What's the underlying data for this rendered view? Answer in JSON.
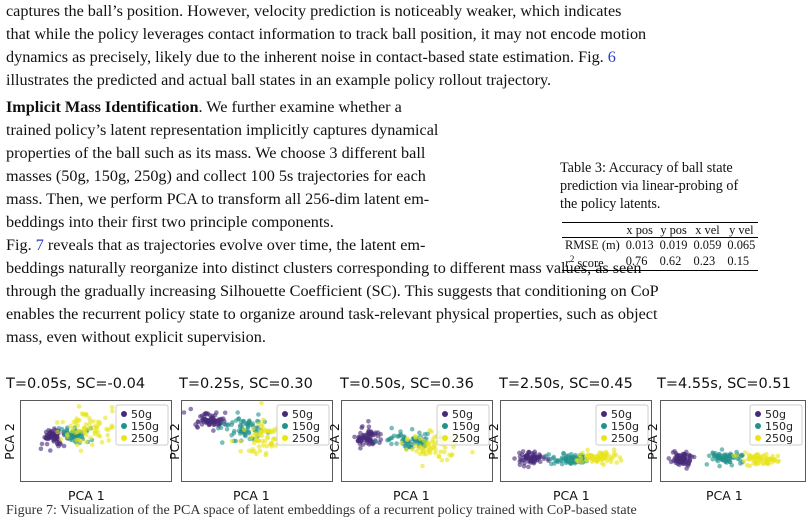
{
  "para1": {
    "line1": "captures the ball’s position. However, velocity prediction is noticeably weaker, which indicates",
    "line2": "that while the policy leverages contact information to track ball position, it may not encode motion",
    "line3_pre": "dynamics as precisely, likely due to the inherent noise in contact-based state estimation. Fig. ",
    "line3_ref": "6",
    "line4": "illustrates the predicted and actual ball states in an example policy rollout trajectory."
  },
  "para2": {
    "heading": "Implicit Mass Identification",
    "line1_rest": ". We further examine whether a",
    "line2": "trained policy’s latent representation implicitly captures dynamical",
    "line3": "properties of the ball such as its mass. We choose 3 different ball",
    "line4": "masses (50g, 150g, 250g) and collect 100 5s trajectories for each",
    "line5": "mass. Then, we perform PCA to transform all 256-dim latent em-",
    "line6": "beddings into their first two principle components.",
    "line7_pre": "Fig. ",
    "line7_ref": "7",
    "line7_post": " reveals that as trajectories evolve over time, the latent em-",
    "line8": "beddings naturally reorganize into distinct clusters corresponding to different mass values, as seen",
    "line9": "through the gradually increasing Silhouette Coefficient (SC). This suggests that conditioning on CoP",
    "line10": "enables the recurrent policy state to organize around task-relevant physical properties, such as object",
    "line11": "mass, even without explicit supervision."
  },
  "table3": {
    "caption_line1": "Table 3: Accuracy of ball state",
    "caption_line2": "prediction via linear-probing of",
    "caption_line3": "the policy latents.",
    "columns": [
      "",
      "x pos",
      "y pos",
      "x vel",
      "y vel"
    ],
    "rows": [
      {
        "label": "RMSE (m)",
        "values": [
          "0.013",
          "0.019",
          "0.059",
          "0.065"
        ]
      },
      {
        "label_pre": "r",
        "label_sup": "2",
        "label_post": " score",
        "values": [
          "0.76",
          "0.62",
          "0.23",
          "0.15"
        ]
      }
    ]
  },
  "figure7": {
    "xlabel": "PCA 1",
    "ylabel": "PCA 2",
    "legend": [
      "50g",
      "150g",
      "250g"
    ],
    "legend_colors": [
      "#472a7a",
      "#21918c",
      "#e8e419"
    ],
    "panels": [
      {
        "title": "T=0.05s, SC=-0.04"
      },
      {
        "title": "T=0.25s, SC=0.30"
      },
      {
        "title": "T=0.50s, SC=0.36"
      },
      {
        "title": "T=2.50s, SC=0.45"
      },
      {
        "title": "T=4.55s, SC=0.51"
      }
    ],
    "caption_partial": "Figure 7: Visualization of the PCA space of latent embeddings of a recurrent policy trained with CoP-based state"
  }
}
